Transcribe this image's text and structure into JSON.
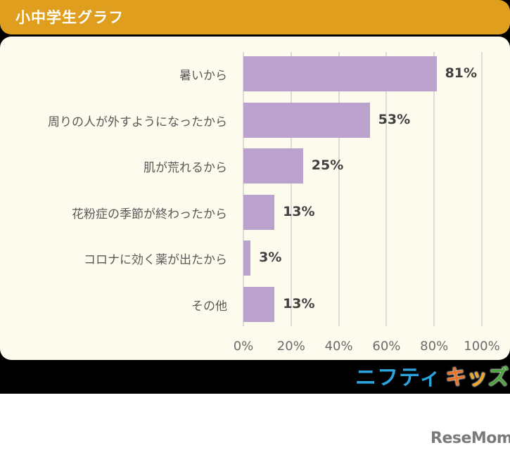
{
  "header": {
    "title": "小中学生グラフ"
  },
  "colors": {
    "header": "#e09e1f",
    "panel": "#fdfbed",
    "bar": "#baa2cd",
    "brand_blue": "#2ba4de",
    "brand_orange": "#e8742a"
  },
  "chart_data": {
    "type": "bar",
    "orientation": "horizontal",
    "title": "小中学生グラフ",
    "categories": [
      "暑いから",
      "周りの人が外すようになったから",
      "肌が荒れるから",
      "花粉症の季節が終わったから",
      "コロナに効く薬が出たから",
      "その他"
    ],
    "values": [
      81,
      53,
      25,
      13,
      3,
      13
    ],
    "value_labels": [
      "81%",
      "53%",
      "25%",
      "13%",
      "3%",
      "13%"
    ],
    "xlabel": "",
    "ylabel": "",
    "xlim": [
      0,
      100
    ],
    "x_ticks": [
      "0%",
      "20%",
      "40%",
      "60%",
      "80%",
      "100%"
    ],
    "grid": true,
    "legend": null
  },
  "brand": {
    "part1": "ニフティ",
    "part2a": "キ",
    "part2b": "ッ",
    "part2c": "ズ"
  },
  "footer": {
    "logo": "ReseMom"
  }
}
